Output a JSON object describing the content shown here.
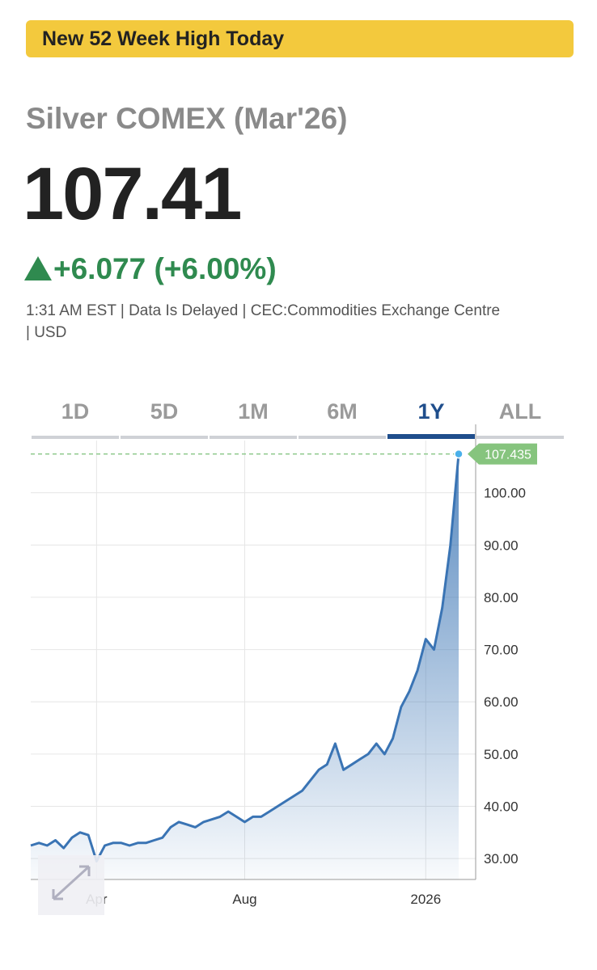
{
  "banner": "New 52 Week High Today",
  "title": "Silver COMEX (Mar'26)",
  "price": "107.41",
  "change": "+6.077 (+6.00%)",
  "meta": [
    "1:31 AM EST | Data Is Delayed | CEC:Commodities Exchange Centre",
    "| USD"
  ],
  "tabs": [
    "1D",
    "5D",
    "1M",
    "6M",
    "1Y",
    "ALL"
  ],
  "active_tab": 4,
  "chart_data": {
    "type": "area",
    "color": "#3a74b4",
    "grid": true,
    "categories": [
      null,
      null,
      null,
      null,
      null,
      null,
      null,
      null,
      "Apr",
      null,
      null,
      null,
      null,
      null,
      null,
      null,
      null,
      null,
      null,
      null,
      null,
      null,
      null,
      null,
      null,
      null,
      "Aug",
      null,
      null,
      null,
      null,
      null,
      null,
      null,
      null,
      null,
      null,
      null,
      null,
      null,
      null,
      null,
      null,
      null,
      null,
      null,
      null,
      null,
      "2026",
      null,
      null,
      null,
      null
    ],
    "values": [
      32.5,
      33,
      32.5,
      33.5,
      32,
      34,
      35,
      34.5,
      29.5,
      32.5,
      33,
      33,
      32.5,
      33,
      33,
      33.5,
      34,
      36,
      37,
      36.5,
      36,
      37,
      37.5,
      38,
      39,
      38,
      37,
      38,
      38,
      39,
      40,
      41,
      42,
      43,
      45,
      47,
      48,
      52,
      47,
      48,
      49,
      50,
      52,
      50,
      53,
      59,
      62,
      66,
      72,
      70,
      78,
      90,
      107.435
    ],
    "ylim": [
      26,
      110
    ],
    "yticks": [
      {
        "value": 30,
        "label": "30.00"
      },
      {
        "value": 40,
        "label": "40.00"
      },
      {
        "value": 50,
        "label": "50.00"
      },
      {
        "value": 60,
        "label": "60.00"
      },
      {
        "value": 70,
        "label": "70.00"
      },
      {
        "value": 80,
        "label": "80.00"
      },
      {
        "value": 90,
        "label": "90.00"
      },
      {
        "value": 100,
        "label": "100.00"
      }
    ]
  }
}
